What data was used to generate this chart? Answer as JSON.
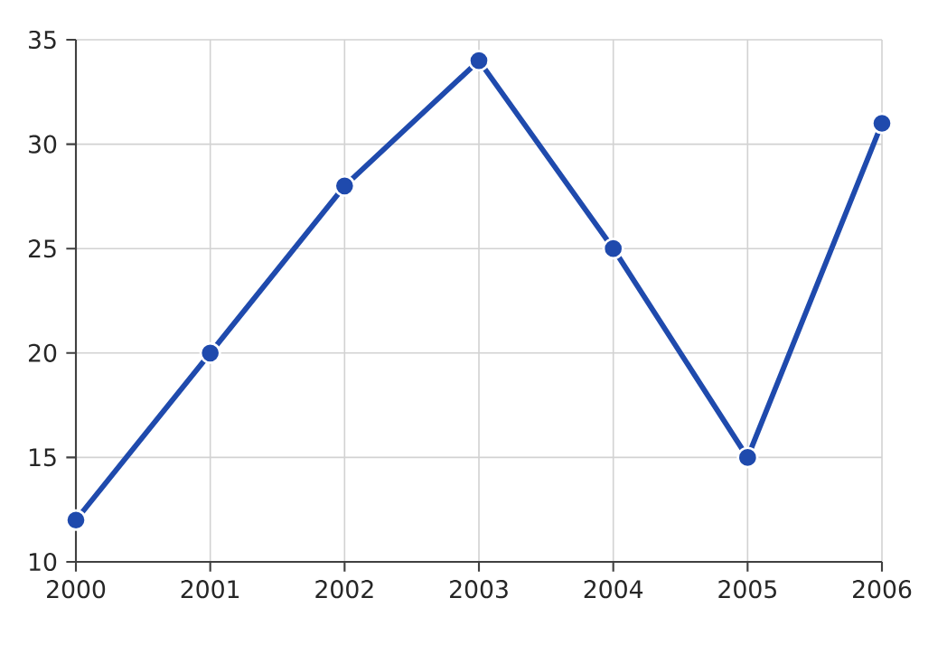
{
  "chart_data": {
    "type": "line",
    "x": [
      2000,
      2001,
      2002,
      2003,
      2004,
      2005,
      2006
    ],
    "series": [
      {
        "color": "#1f4aad",
        "values": [
          12,
          20,
          28,
          34,
          25,
          15,
          31
        ]
      }
    ],
    "xlim": [
      2000,
      2006
    ],
    "xticks": [
      2000,
      2001,
      2002,
      2003,
      2004,
      2005,
      2006
    ],
    "ylim": [
      10,
      35
    ],
    "yticks": [
      10,
      15,
      20,
      25,
      30,
      35
    ],
    "grid": true,
    "marker": "circle",
    "line_style": "solid"
  }
}
